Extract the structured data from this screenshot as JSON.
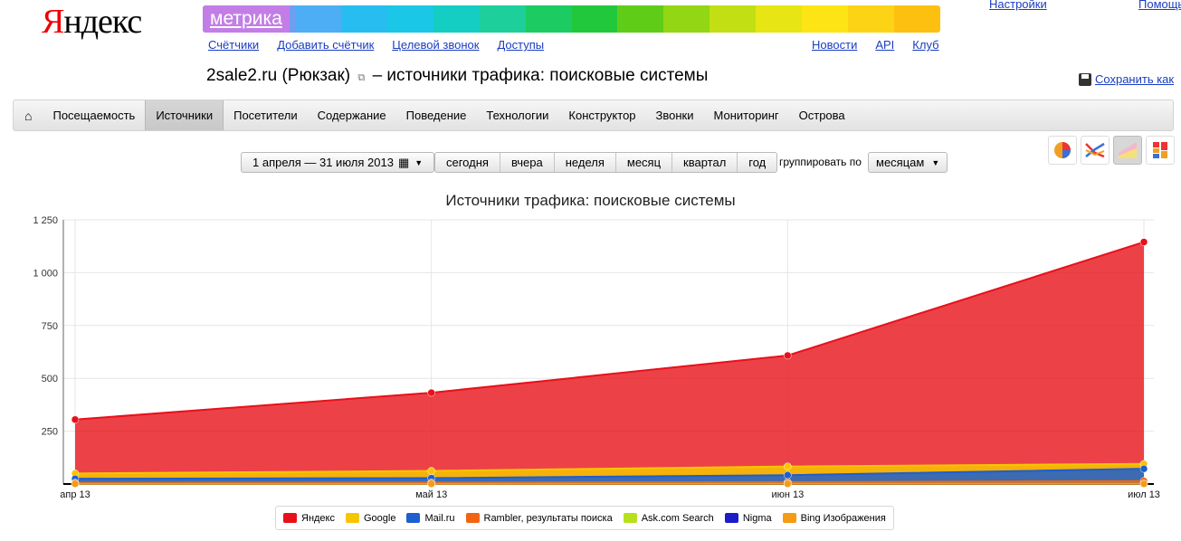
{
  "header": {
    "logo": "Яндекс",
    "product": "метрика",
    "top_links": [
      "Настройки",
      "Помощь"
    ],
    "subnav_left": [
      "Счётчики",
      "Добавить счётчик",
      "Целевой звонок",
      "Доступы"
    ],
    "subnav_right": [
      "Новости",
      "API",
      "Клуб"
    ],
    "rainbow_colors": [
      "#b38be8",
      "#6f9df0",
      "#4daef5",
      "#27bdf0",
      "#1ac7e6",
      "#14cdc3",
      "#1dcf9a",
      "#1ccc62",
      "#22c83b",
      "#5fcd18",
      "#93d614",
      "#c2df13",
      "#e7e513",
      "#fde414",
      "#fdd415",
      "#fdc011"
    ]
  },
  "page": {
    "site": "2sale2.ru (Рюкзак)",
    "title_suffix": "– источники трафика: поисковые системы",
    "save_as": "Сохранить как"
  },
  "menu": {
    "items": [
      "Посещаемость",
      "Источники",
      "Посетители",
      "Содержание",
      "Поведение",
      "Технологии",
      "Конструктор",
      "Звонки",
      "Мониторинг",
      "Острова"
    ],
    "active_index": 1
  },
  "controls": {
    "date_range": "1 апреля — 31 июля 2013",
    "periods": [
      "сегодня",
      "вчера",
      "неделя",
      "месяц",
      "квартал",
      "год"
    ],
    "group_label": "группировать по",
    "group_value": "месяцам"
  },
  "chart_data": {
    "type": "area",
    "title": "Источники трафика: поисковые системы",
    "x": [
      "апр 13",
      "май 13",
      "июн 13",
      "июл 13"
    ],
    "ylim": [
      0,
      1250
    ],
    "yticks": [
      250,
      500,
      750,
      1000,
      1250
    ],
    "ytick_labels": [
      "250",
      "500",
      "750",
      "1 000",
      "1 250"
    ],
    "grid": true,
    "legend_position": "bottom",
    "series": [
      {
        "name": "Яндекс",
        "color": "#e8111a",
        "values": [
          305,
          432,
          608,
          1145
        ]
      },
      {
        "name": "Google",
        "color": "#f7c600",
        "values": [
          50,
          62,
          83,
          95
        ]
      },
      {
        "name": "Mail.ru",
        "color": "#1c5fcf",
        "values": [
          25,
          28,
          42,
          72
        ]
      },
      {
        "name": "Rambler, результаты поиска",
        "color": "#f06414",
        "values": [
          6,
          7,
          9,
          14
        ]
      },
      {
        "name": "Ask.com Search",
        "color": "#b7e01c",
        "values": [
          1,
          1,
          2,
          2
        ]
      },
      {
        "name": "Nigma",
        "color": "#1c1cc8",
        "values": [
          1,
          1,
          1,
          1
        ]
      },
      {
        "name": "Bing Изображения",
        "color": "#f59b14",
        "values": [
          1,
          1,
          1,
          1
        ]
      }
    ]
  }
}
